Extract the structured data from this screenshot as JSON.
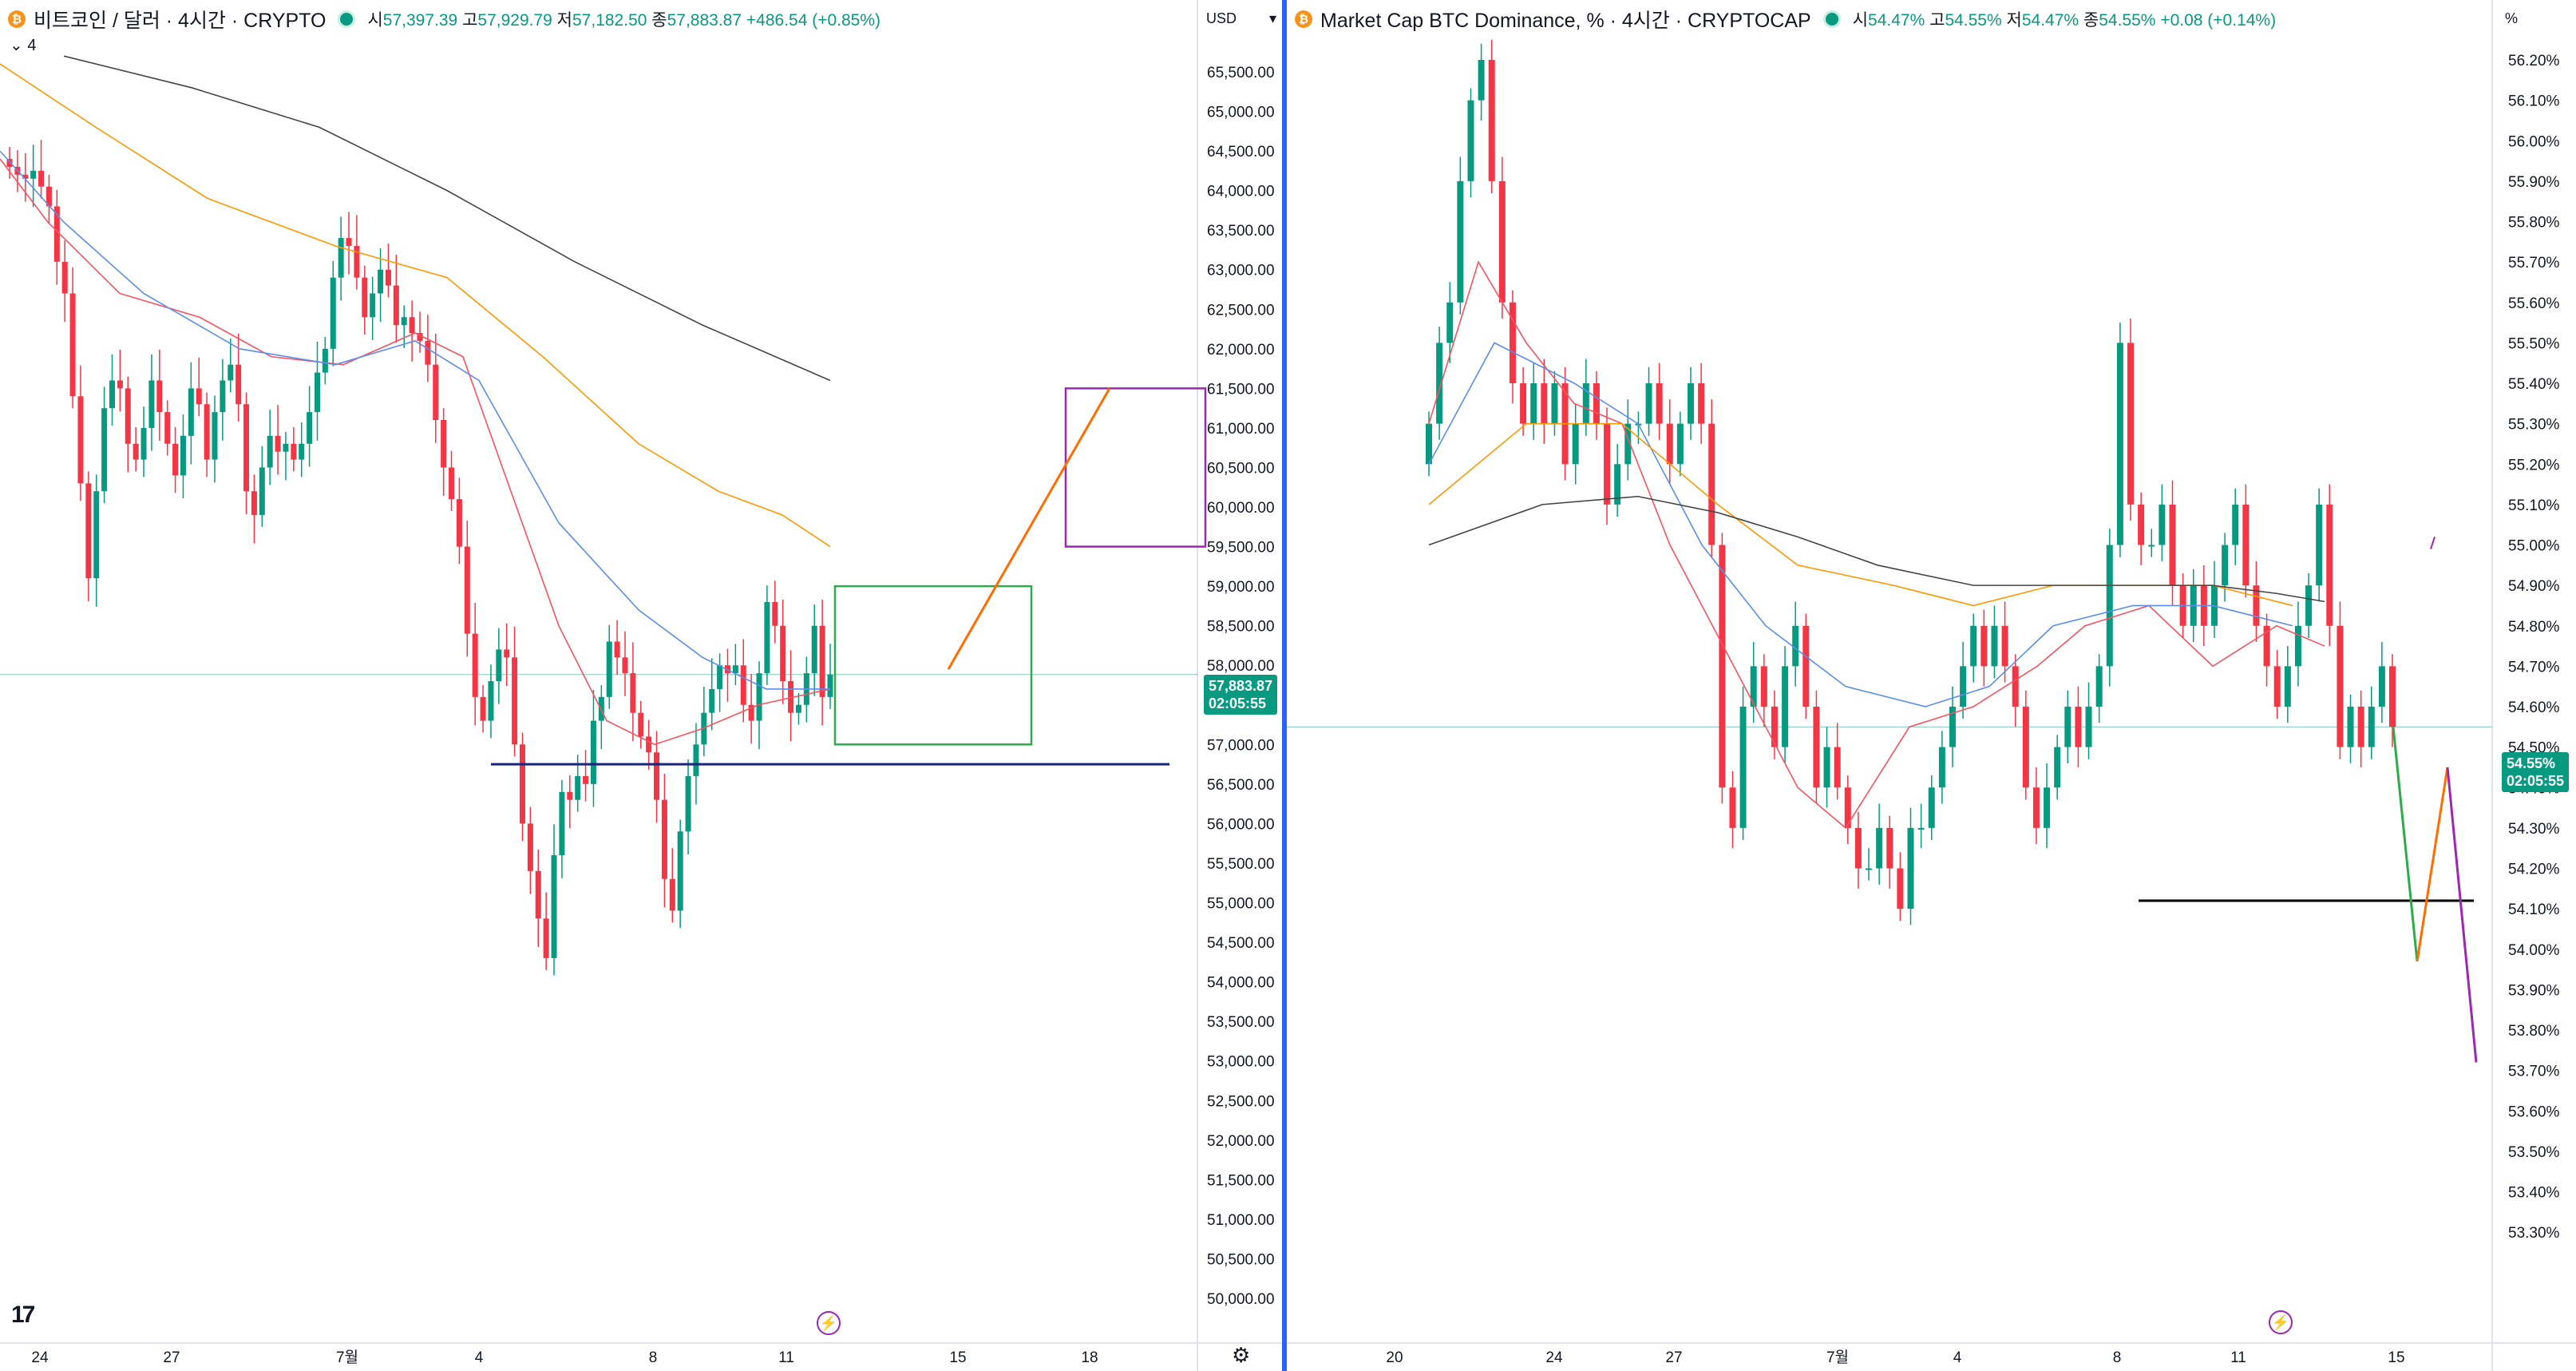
{
  "left_chart": {
    "symbol": "비트코인 / 달러 · 4시간 · CRYPTO",
    "coin_icon": "bitcoin-icon",
    "ohlc": [
      {
        "k": "시",
        "v": "57,397.39"
      },
      {
        "k": "고",
        "v": "57,929.79"
      },
      {
        "k": "저",
        "v": "57,182.50"
      },
      {
        "k": "종",
        "v": "57,883.87"
      }
    ],
    "change": "+486.54 (+0.85%)",
    "interval_badge": "4",
    "currency": "USD",
    "last_price": "57,883.87",
    "countdown": "02:05:55",
    "y_ticks": [
      "65,500.00",
      "65,000.00",
      "64,500.00",
      "64,000.00",
      "63,500.00",
      "63,000.00",
      "62,500.00",
      "62,000.00",
      "61,500.00",
      "61,000.00",
      "60,500.00",
      "60,000.00",
      "59,500.00",
      "59,000.00",
      "58,500.00",
      "58,000.00",
      "57,500.00",
      "57,000.00",
      "56,500.00",
      "56,000.00",
      "55,500.00",
      "55,000.00",
      "54,500.00",
      "54,000.00",
      "53,500.00",
      "53,000.00",
      "52,500.00",
      "52,000.00",
      "51,500.00",
      "51,000.00",
      "50,500.00",
      "50,000.00"
    ],
    "x_ticks": [
      "24",
      "27",
      "7월",
      "4",
      "8",
      "11",
      "15",
      "18"
    ],
    "colors": {
      "up": "#089981",
      "down": "#f23645",
      "accent": "#2962ff"
    }
  },
  "right_chart": {
    "symbol": "Market Cap BTC Dominance, % · 4시간 · CRYPTOCAP",
    "coin_icon": "bitcoin-icon",
    "ohlc": [
      {
        "k": "시",
        "v": "54.47%"
      },
      {
        "k": "고",
        "v": "54.55%"
      },
      {
        "k": "저",
        "v": "54.47%"
      },
      {
        "k": "종",
        "v": "54.55%"
      }
    ],
    "change": "+0.08 (+0.14%)",
    "unit": "%",
    "last_price": "54.55%",
    "countdown": "02:05:55",
    "y_ticks": [
      "56.20%",
      "56.10%",
      "56.00%",
      "55.90%",
      "55.80%",
      "55.70%",
      "55.60%",
      "55.50%",
      "55.40%",
      "55.30%",
      "55.20%",
      "55.10%",
      "55.00%",
      "54.90%",
      "54.80%",
      "54.70%",
      "54.60%",
      "54.50%",
      "54.40%",
      "54.30%",
      "54.20%",
      "54.10%",
      "54.00%",
      "53.90%",
      "53.80%",
      "53.70%",
      "53.60%",
      "53.50%",
      "53.40%",
      "53.30%"
    ],
    "x_ticks": [
      "20",
      "24",
      "27",
      "7월",
      "4",
      "8",
      "11",
      "15"
    ]
  }
}
